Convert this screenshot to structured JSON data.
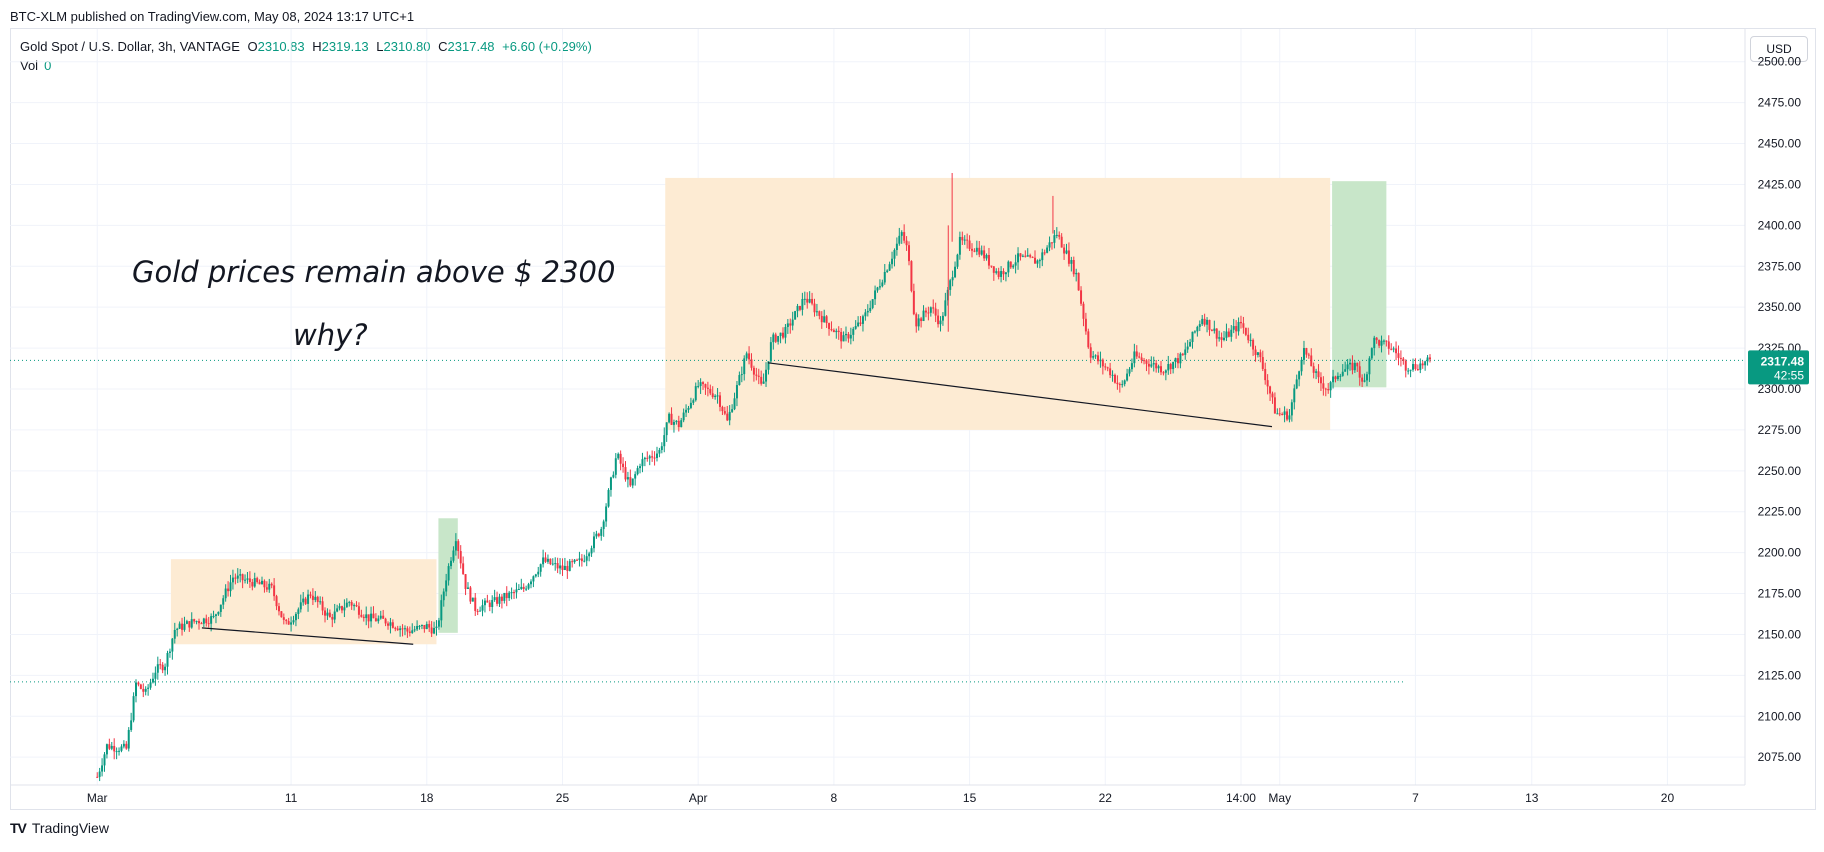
{
  "header": {
    "published": "BTC-XLM published on TradingView.com, May 08, 2024 13:17 UTC+1"
  },
  "legend": {
    "symbol": "Gold Spot / U.S. Dollar, 3h, VANTAGE",
    "open_label": "O",
    "open": "2310.83",
    "high_label": "H",
    "high": "2319.13",
    "low_label": "L",
    "low": "2310.80",
    "close_label": "C",
    "close": "2317.48",
    "change": "+6.60 (+0.29%)",
    "vol_label": "Vol",
    "vol": "0"
  },
  "currency_button": "USD",
  "footer": {
    "brand": "TradingView"
  },
  "colors": {
    "up": "#089981",
    "down": "#f23645",
    "range_box": "#fdebd3",
    "target_box": "#c8e6c9"
  },
  "chart_data": {
    "type": "candlestick",
    "y_axis": {
      "range": [
        2058,
        2520
      ],
      "side": "right",
      "ticks": [
        "2075.00",
        "2100.00",
        "2125.00",
        "2150.00",
        "2175.00",
        "2200.00",
        "2225.00",
        "2250.00",
        "2275.00",
        "2300.00",
        "2325.00",
        "2350.00",
        "2375.00",
        "2400.00",
        "2425.00",
        "2450.00",
        "2475.00",
        "2500.00"
      ]
    },
    "x_axis": {
      "ticks": [
        "Mar",
        "11",
        "18",
        "25",
        "Apr",
        "8",
        "15",
        "22",
        "14:00",
        "May",
        "7",
        "13",
        "20"
      ],
      "tick_days": [
        0,
        10,
        17,
        24,
        31,
        38,
        45,
        52,
        59,
        61,
        68,
        74,
        81
      ],
      "range_days": [
        -4.5,
        85
      ]
    },
    "grid": true,
    "last_price": {
      "value": "2317.48",
      "countdown": "42:55"
    },
    "support_level": 2121,
    "annotations": [
      "Gold prices remain above $ 2300",
      "why?"
    ],
    "consolidation_ranges": [
      {
        "from_day": 3.8,
        "to_day": 17.5,
        "low": 2144,
        "high": 2196
      },
      {
        "from_day": 29.3,
        "to_day": 63.6,
        "low": 2275,
        "high": 2429
      }
    ],
    "breakout_boxes": [
      {
        "from_day": 17.6,
        "to_day": 18.6,
        "low": 2151,
        "high": 2221
      },
      {
        "from_day": 63.7,
        "to_day": 66.5,
        "low": 2301,
        "high": 2427
      }
    ],
    "trendlines": [
      {
        "from": [
          5.4,
          2154
        ],
        "to": [
          16.3,
          2144
        ]
      },
      {
        "from": [
          34.6,
          2316
        ],
        "to": [
          60.6,
          2277
        ]
      }
    ],
    "anchors": [
      [
        0,
        2063
      ],
      [
        0.5,
        2082
      ],
      [
        1.5,
        2080
      ],
      [
        2,
        2120
      ],
      [
        2.5,
        2114
      ],
      [
        3,
        2128
      ],
      [
        3.5,
        2132
      ],
      [
        4,
        2153
      ],
      [
        5,
        2158
      ],
      [
        6,
        2160
      ],
      [
        7,
        2185
      ],
      [
        8,
        2182
      ],
      [
        9,
        2178
      ],
      [
        9.7,
        2155
      ],
      [
        11,
        2175
      ],
      [
        12,
        2160
      ],
      [
        13,
        2170
      ],
      [
        14,
        2160
      ],
      [
        15,
        2158
      ],
      [
        16,
        2152
      ],
      [
        17,
        2155
      ],
      [
        17.5,
        2152
      ],
      [
        18,
        2185
      ],
      [
        18.5,
        2210
      ],
      [
        19,
        2180
      ],
      [
        19.5,
        2166
      ],
      [
        20.5,
        2170
      ],
      [
        22,
        2178
      ],
      [
        23,
        2195
      ],
      [
        24,
        2190
      ],
      [
        25,
        2195
      ],
      [
        26,
        2215
      ],
      [
        26.8,
        2260
      ],
      [
        27.5,
        2240
      ],
      [
        28,
        2255
      ],
      [
        29,
        2262
      ],
      [
        29.5,
        2282
      ],
      [
        30,
        2278
      ],
      [
        30.5,
        2290
      ],
      [
        31,
        2302
      ],
      [
        32,
        2296
      ],
      [
        32.5,
        2280
      ],
      [
        33.5,
        2322
      ],
      [
        34.3,
        2300
      ],
      [
        34.8,
        2330
      ],
      [
        35.5,
        2335
      ],
      [
        36.5,
        2356
      ],
      [
        37.5,
        2342
      ],
      [
        38.5,
        2330
      ],
      [
        39.5,
        2342
      ],
      [
        40.5,
        2368
      ],
      [
        41.5,
        2395
      ],
      [
        41.8,
        2385
      ],
      [
        42.2,
        2340
      ],
      [
        43,
        2350
      ],
      [
        43.5,
        2340
      ],
      [
        44.5,
        2390
      ],
      [
        45.5,
        2385
      ],
      [
        46.5,
        2370
      ],
      [
        47.5,
        2380
      ],
      [
        48.5,
        2378
      ],
      [
        49.5,
        2395
      ],
      [
        50.5,
        2370
      ],
      [
        51.2,
        2322
      ],
      [
        52.3,
        2310
      ],
      [
        52.8,
        2300
      ],
      [
        53.5,
        2320
      ],
      [
        55,
        2312
      ],
      [
        56,
        2320
      ],
      [
        57,
        2344
      ],
      [
        58,
        2330
      ],
      [
        59,
        2340
      ],
      [
        60,
        2318
      ],
      [
        60.8,
        2285
      ],
      [
        61.5,
        2284
      ],
      [
        62.2,
        2325
      ],
      [
        63,
        2305
      ],
      [
        63.5,
        2300
      ],
      [
        64,
        2310
      ],
      [
        65,
        2315
      ],
      [
        65.3,
        2300
      ],
      [
        65.8,
        2330
      ],
      [
        66.8,
        2325
      ],
      [
        67.5,
        2314
      ],
      [
        68,
        2314
      ],
      [
        68.8,
        2317
      ]
    ]
  }
}
